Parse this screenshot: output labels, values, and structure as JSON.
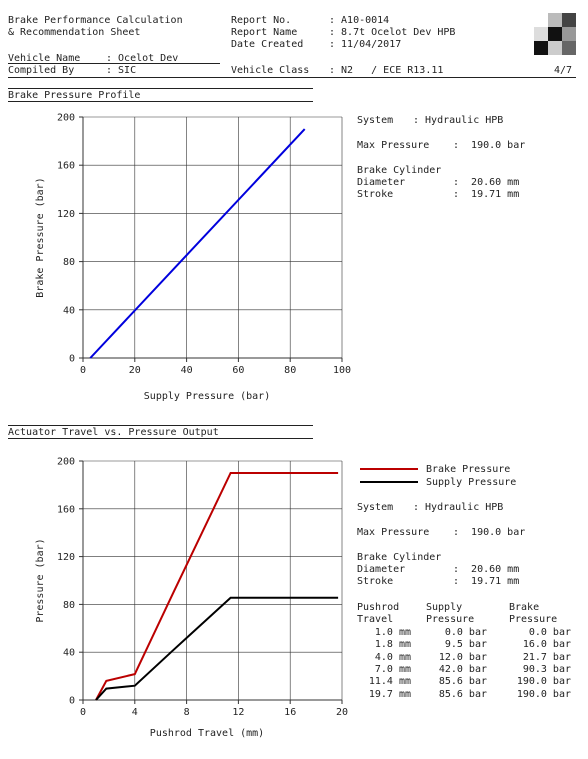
{
  "header": {
    "title_line1": "Brake Performance Calculation",
    "title_line2": "& Recommendation Sheet",
    "report_no_label": "Report No.",
    "report_no_value": ": A10-0014",
    "report_name_label": "Report Name",
    "report_name_value": ": 8.7t Ocelot Dev HPB",
    "date_label": "Date Created",
    "date_value": ": 11/04/2017",
    "vehicle_name_label": "Vehicle Name",
    "vehicle_name_value": ": Ocelot Dev",
    "compiled_by_label": "Compiled By",
    "compiled_by_value": ": SIC",
    "vehicle_class_label": "Vehicle Class",
    "vehicle_class_value": ": N2   / ECE R13.11",
    "page": "4/7"
  },
  "section1": {
    "title": "Brake Pressure Profile",
    "specs": {
      "system_label": "System",
      "system_value": ": Hydraulic HPB",
      "max_pressure_label": "Max Pressure",
      "max_pressure_value": ":  190.0 bar",
      "cylinder_label": "Brake Cylinder",
      "diameter_label": "Diameter",
      "diameter_value": ":  20.60 mm",
      "stroke_label": "Stroke",
      "stroke_value": ":  19.71 mm"
    }
  },
  "section2": {
    "title": "Actuator Travel vs. Pressure Output",
    "legend": {
      "brake": "Brake Pressure",
      "supply": "Supply Pressure"
    },
    "specs": {
      "system_label": "System",
      "system_value": ": Hydraulic HPB",
      "max_pressure_label": "Max Pressure",
      "max_pressure_value": ":  190.0 bar",
      "cylinder_label": "Brake Cylinder",
      "diameter_label": "Diameter",
      "diameter_value": ":  20.60 mm",
      "stroke_label": "Stroke",
      "stroke_value": ":  19.71 mm"
    },
    "table": {
      "headers": [
        [
          "Pushrod",
          "Travel"
        ],
        [
          "Supply",
          "Pressure"
        ],
        [
          "Brake",
          "Pressure"
        ]
      ],
      "rows": [
        [
          "1.0 mm",
          "0.0 bar",
          "0.0 bar"
        ],
        [
          "1.8 mm",
          "9.5 bar",
          "16.0 bar"
        ],
        [
          "4.0 mm",
          "12.0 bar",
          "21.7 bar"
        ],
        [
          "7.0 mm",
          "42.0 bar",
          "90.3 bar"
        ],
        [
          "11.4 mm",
          "85.6 bar",
          "190.0 bar"
        ],
        [
          "19.7 mm",
          "85.6 bar",
          "190.0 bar"
        ]
      ]
    }
  },
  "chart_data": [
    {
      "type": "line",
      "xlabel": "Supply Pressure (bar)",
      "ylabel": "Brake Pressure (bar)",
      "xlim": [
        0,
        100
      ],
      "ylim": [
        0,
        200
      ],
      "xticks": [
        0,
        20,
        40,
        60,
        80,
        100
      ],
      "yticks": [
        0,
        40,
        80,
        120,
        160,
        200
      ],
      "grid": true,
      "series": [
        {
          "color": "#0000dd",
          "x": [
            2.8,
            85.6
          ],
          "y": [
            0,
            190
          ]
        }
      ]
    },
    {
      "type": "line",
      "xlabel": "Pushrod Travel (mm)",
      "ylabel": "Pressure (bar)",
      "xlim": [
        0,
        20
      ],
      "ylim": [
        0,
        200
      ],
      "xticks": [
        0,
        4,
        8,
        12,
        16,
        20
      ],
      "yticks": [
        0,
        40,
        80,
        120,
        160,
        200
      ],
      "grid": true,
      "legend": "top-right",
      "series": [
        {
          "name": "Brake Pressure",
          "color": "#bb0000",
          "x": [
            1.0,
            1.8,
            4.0,
            7.0,
            11.4,
            19.7
          ],
          "y": [
            0,
            16.0,
            21.7,
            90.3,
            190.0,
            190.0
          ]
        },
        {
          "name": "Supply Pressure",
          "color": "#000000",
          "x": [
            1.0,
            1.8,
            4.0,
            7.0,
            11.4,
            19.7
          ],
          "y": [
            0,
            9.5,
            12.0,
            42.0,
            85.6,
            85.6
          ]
        }
      ]
    }
  ]
}
